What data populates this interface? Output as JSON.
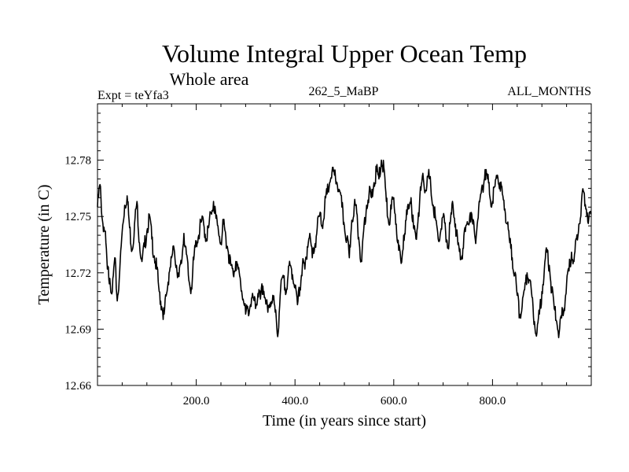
{
  "chart_data": {
    "type": "line",
    "title": "Volume Integral Upper Ocean Temp",
    "subtitle": "Whole area",
    "header_left": "Expt = teYfa3",
    "header_center": "262_5_MaBP",
    "header_right": "ALL_MONTHS",
    "xlabel": "Time (in years since start)",
    "ylabel": "Temperature (in C)",
    "xlim": [
      0,
      1000
    ],
    "ylim": [
      12.66,
      12.81
    ],
    "x_ticks": [
      200,
      400,
      600,
      800
    ],
    "x_tick_labels": [
      "200.0",
      "400.0",
      "600.0",
      "800.0"
    ],
    "y_ticks": [
      12.66,
      12.69,
      12.72,
      12.75,
      12.78
    ],
    "y_tick_labels": [
      "12.66",
      "12.69",
      "12.72",
      "12.75",
      "12.78"
    ],
    "series": [
      {
        "name": "Volume Integral Upper Ocean Temp",
        "anchors": [
          [
            0,
            12.755
          ],
          [
            5,
            12.767
          ],
          [
            10,
            12.748
          ],
          [
            15,
            12.742
          ],
          [
            20,
            12.722
          ],
          [
            25,
            12.717
          ],
          [
            30,
            12.71
          ],
          [
            35,
            12.728
          ],
          [
            40,
            12.705
          ],
          [
            45,
            12.721
          ],
          [
            50,
            12.742
          ],
          [
            55,
            12.756
          ],
          [
            60,
            12.761
          ],
          [
            65,
            12.744
          ],
          [
            70,
            12.732
          ],
          [
            75,
            12.746
          ],
          [
            80,
            12.758
          ],
          [
            85,
            12.736
          ],
          [
            90,
            12.726
          ],
          [
            95,
            12.734
          ],
          [
            100,
            12.742
          ],
          [
            105,
            12.751
          ],
          [
            110,
            12.738
          ],
          [
            115,
            12.729
          ],
          [
            120,
            12.722
          ],
          [
            125,
            12.71
          ],
          [
            130,
            12.702
          ],
          [
            135,
            12.698
          ],
          [
            140,
            12.709
          ],
          [
            145,
            12.72
          ],
          [
            150,
            12.728
          ],
          [
            155,
            12.733
          ],
          [
            160,
            12.724
          ],
          [
            165,
            12.718
          ],
          [
            170,
            12.725
          ],
          [
            175,
            12.741
          ],
          [
            180,
            12.73
          ],
          [
            185,
            12.716
          ],
          [
            190,
            12.712
          ],
          [
            195,
            12.727
          ],
          [
            200,
            12.737
          ],
          [
            205,
            12.74
          ],
          [
            210,
            12.747
          ],
          [
            215,
            12.746
          ],
          [
            220,
            12.738
          ],
          [
            225,
            12.744
          ],
          [
            230,
            12.752
          ],
          [
            235,
            12.758
          ],
          [
            240,
            12.749
          ],
          [
            245,
            12.742
          ],
          [
            250,
            12.736
          ],
          [
            255,
            12.746
          ],
          [
            260,
            12.739
          ],
          [
            265,
            12.731
          ],
          [
            270,
            12.724
          ],
          [
            275,
            12.719
          ],
          [
            280,
            12.726
          ],
          [
            285,
            12.722
          ],
          [
            290,
            12.714
          ],
          [
            295,
            12.706
          ],
          [
            300,
            12.698
          ],
          [
            305,
            12.7
          ],
          [
            310,
            12.703
          ],
          [
            315,
            12.707
          ],
          [
            320,
            12.701
          ],
          [
            325,
            12.709
          ],
          [
            330,
            12.706
          ],
          [
            335,
            12.713
          ],
          [
            340,
            12.706
          ],
          [
            345,
            12.699
          ],
          [
            350,
            12.704
          ],
          [
            355,
            12.708
          ],
          [
            360,
            12.699
          ],
          [
            365,
            12.686
          ],
          [
            370,
            12.708
          ],
          [
            375,
            12.718
          ],
          [
            380,
            12.712
          ],
          [
            385,
            12.716
          ],
          [
            390,
            12.724
          ],
          [
            395,
            12.719
          ],
          [
            400,
            12.712
          ],
          [
            405,
            12.703
          ],
          [
            410,
            12.712
          ],
          [
            415,
            12.724
          ],
          [
            420,
            12.722
          ],
          [
            425,
            12.734
          ],
          [
            430,
            12.741
          ],
          [
            435,
            12.728
          ],
          [
            440,
            12.734
          ],
          [
            445,
            12.744
          ],
          [
            450,
            12.751
          ],
          [
            455,
            12.745
          ],
          [
            460,
            12.755
          ],
          [
            465,
            12.762
          ],
          [
            470,
            12.768
          ],
          [
            475,
            12.774
          ],
          [
            480,
            12.772
          ],
          [
            485,
            12.768
          ],
          [
            490,
            12.764
          ],
          [
            495,
            12.755
          ],
          [
            500,
            12.745
          ],
          [
            505,
            12.738
          ],
          [
            510,
            12.728
          ],
          [
            515,
            12.748
          ],
          [
            520,
            12.756
          ],
          [
            525,
            12.752
          ],
          [
            530,
            12.736
          ],
          [
            535,
            12.726
          ],
          [
            540,
            12.746
          ],
          [
            545,
            12.756
          ],
          [
            550,
            12.762
          ],
          [
            555,
            12.76
          ],
          [
            560,
            12.768
          ],
          [
            565,
            12.774
          ],
          [
            570,
            12.77
          ],
          [
            575,
            12.78
          ],
          [
            580,
            12.776
          ],
          [
            585,
            12.758
          ],
          [
            590,
            12.746
          ],
          [
            595,
            12.754
          ],
          [
            600,
            12.76
          ],
          [
            605,
            12.746
          ],
          [
            610,
            12.732
          ],
          [
            615,
            12.725
          ],
          [
            620,
            12.74
          ],
          [
            625,
            12.748
          ],
          [
            630,
            12.754
          ],
          [
            635,
            12.76
          ],
          [
            640,
            12.744
          ],
          [
            645,
            12.738
          ],
          [
            650,
            12.752
          ],
          [
            655,
            12.764
          ],
          [
            660,
            12.77
          ],
          [
            665,
            12.764
          ],
          [
            670,
            12.772
          ],
          [
            675,
            12.766
          ],
          [
            680,
            12.756
          ],
          [
            685,
            12.748
          ],
          [
            690,
            12.738
          ],
          [
            695,
            12.742
          ],
          [
            700,
            12.75
          ],
          [
            705,
            12.742
          ],
          [
            710,
            12.734
          ],
          [
            715,
            12.748
          ],
          [
            720,
            12.756
          ],
          [
            725,
            12.746
          ],
          [
            730,
            12.735
          ],
          [
            735,
            12.727
          ],
          [
            740,
            12.733
          ],
          [
            745,
            12.742
          ],
          [
            750,
            12.746
          ],
          [
            755,
            12.752
          ],
          [
            760,
            12.746
          ],
          [
            765,
            12.738
          ],
          [
            770,
            12.748
          ],
          [
            775,
            12.76
          ],
          [
            780,
            12.765
          ],
          [
            785,
            12.775
          ],
          [
            790,
            12.77
          ],
          [
            795,
            12.76
          ],
          [
            800,
            12.758
          ],
          [
            805,
            12.766
          ],
          [
            810,
            12.772
          ],
          [
            815,
            12.768
          ],
          [
            820,
            12.762
          ],
          [
            825,
            12.754
          ],
          [
            830,
            12.746
          ],
          [
            835,
            12.736
          ],
          [
            840,
            12.728
          ],
          [
            845,
            12.719
          ],
          [
            850,
            12.708
          ],
          [
            855,
            12.698
          ],
          [
            860,
            12.702
          ],
          [
            865,
            12.711
          ],
          [
            870,
            12.72
          ],
          [
            875,
            12.716
          ],
          [
            880,
            12.707
          ],
          [
            885,
            12.694
          ],
          [
            890,
            12.688
          ],
          [
            895,
            12.698
          ],
          [
            900,
            12.71
          ],
          [
            905,
            12.722
          ],
          [
            910,
            12.731
          ],
          [
            915,
            12.724
          ],
          [
            920,
            12.71
          ],
          [
            925,
            12.701
          ],
          [
            930,
            12.694
          ],
          [
            935,
            12.688
          ],
          [
            940,
            12.696
          ],
          [
            945,
            12.701
          ],
          [
            950,
            12.714
          ],
          [
            955,
            12.721
          ],
          [
            960,
            12.731
          ],
          [
            965,
            12.726
          ],
          [
            970,
            12.738
          ],
          [
            975,
            12.746
          ],
          [
            980,
            12.757
          ],
          [
            985,
            12.763
          ],
          [
            990,
            12.754
          ],
          [
            995,
            12.749
          ],
          [
            1000,
            12.752
          ]
        ]
      }
    ]
  }
}
